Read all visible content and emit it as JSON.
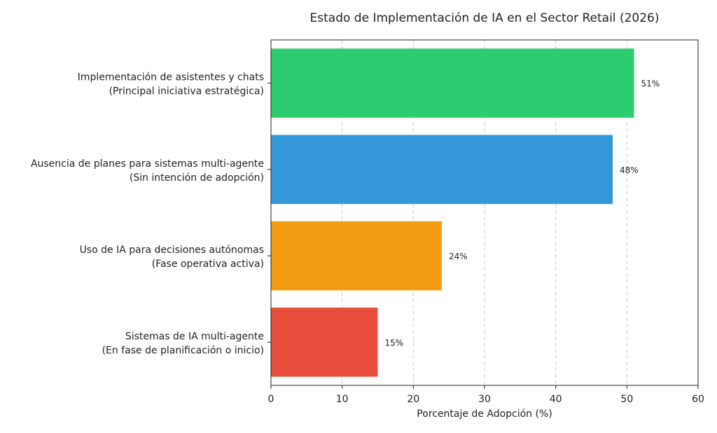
{
  "chart_data": {
    "type": "bar",
    "orientation": "horizontal",
    "title": "Estado de Implementación de IA en el Sector Retail (2026)",
    "xlabel": "Porcentaje de Adopción (%)",
    "ylabel": "",
    "xlim": [
      0,
      60
    ],
    "xticks": [
      0,
      10,
      20,
      30,
      40,
      50,
      60
    ],
    "grid": "x-dashed",
    "categories": [
      [
        "Implementación de asistentes y chats",
        "(Principal iniciativa estratégica)"
      ],
      [
        "Ausencia de planes para sistemas multi-agente",
        "(Sin intención de adopción)"
      ],
      [
        "Uso de IA para decisiones autónomas",
        "(Fase operativa activa)"
      ],
      [
        "Sistemas de IA multi-agente",
        "(En fase de planificación o inicio)"
      ]
    ],
    "values": [
      51,
      48,
      24,
      15
    ],
    "data_labels": [
      "51%",
      "48%",
      "24%",
      "15%"
    ],
    "colors": [
      "#2ecc71",
      "#3498db",
      "#f39c12",
      "#e74c3c"
    ]
  }
}
